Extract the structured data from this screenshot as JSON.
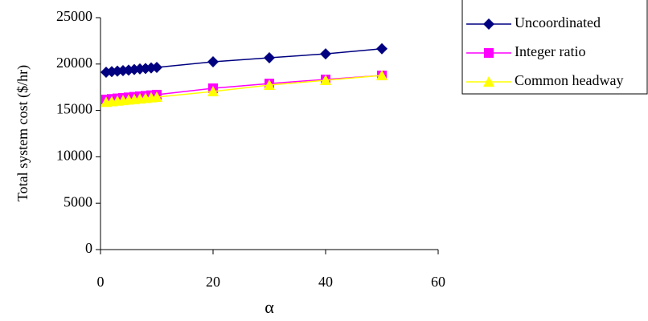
{
  "chart_data": {
    "type": "line",
    "x": [
      1,
      2,
      3,
      4,
      5,
      6,
      7,
      8,
      9,
      10,
      20,
      30,
      40,
      50
    ],
    "series": [
      {
        "name": "Uncoordinated",
        "color": "#000080",
        "marker": "diamond",
        "values": [
          19120,
          19180,
          19240,
          19290,
          19350,
          19410,
          19470,
          19520,
          19580,
          19640,
          20240,
          20670,
          21100,
          21650
        ]
      },
      {
        "name": "Integer ratio",
        "color": "#ff00ff",
        "marker": "square",
        "values": [
          16180,
          16240,
          16300,
          16350,
          16410,
          16470,
          16530,
          16580,
          16640,
          16700,
          17390,
          17900,
          18340,
          18770
        ]
      },
      {
        "name": "Common headway",
        "color": "#ffff00",
        "marker": "triangle",
        "values": [
          15900,
          15960,
          16020,
          16080,
          16140,
          16200,
          16260,
          16320,
          16380,
          16440,
          17040,
          17730,
          18250,
          18770
        ]
      }
    ],
    "xlabel": "α",
    "ylabel": "Total system cost ($/hr)",
    "xlim": [
      0,
      60
    ],
    "xticks": [
      0,
      20,
      40,
      60
    ],
    "ylim": [
      0,
      25000
    ],
    "yticks": [
      0,
      5000,
      10000,
      15000,
      20000,
      25000
    ],
    "legend": "right"
  }
}
